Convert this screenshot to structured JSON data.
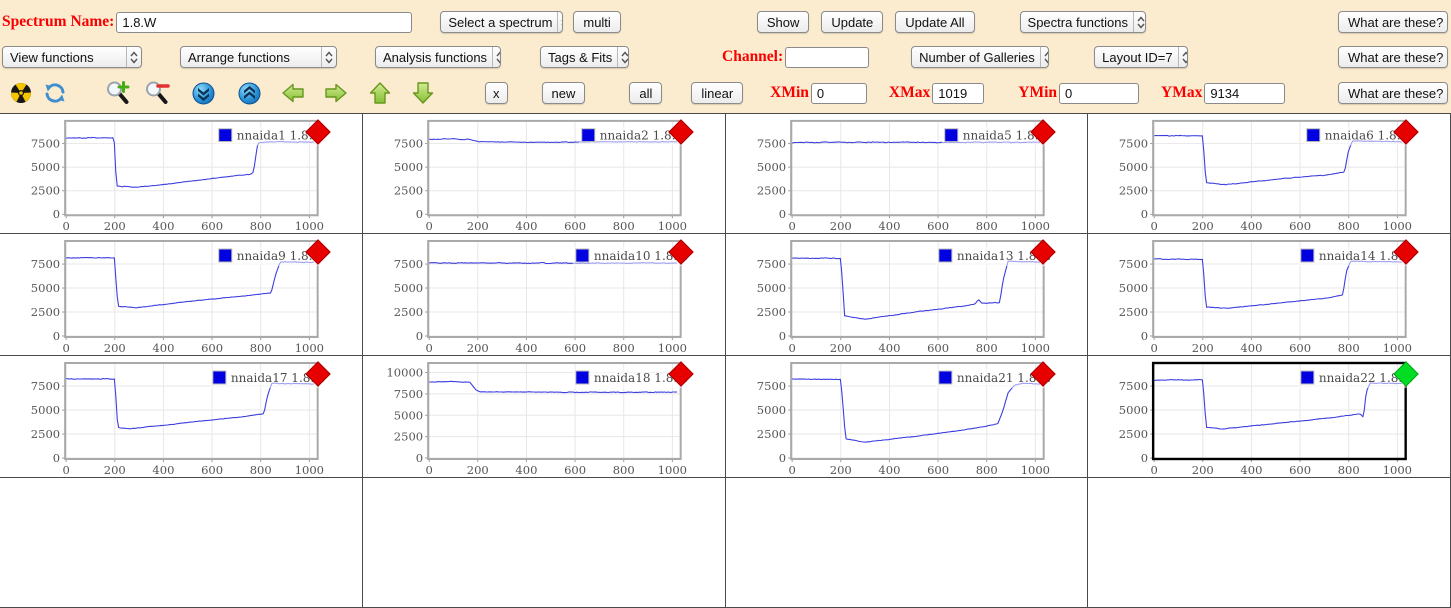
{
  "toolbar": {
    "row1": {
      "spectrum_name_label": "Spectrum Name:",
      "spectrum_name_value": "1.8.W",
      "select_spectrum": "Select a spectrum",
      "multi_label": "multi",
      "show_label": "Show",
      "update_label": "Update",
      "update_all_label": "Update All",
      "spectra_functions": "Spectra functions",
      "what_are_these": "What are these?"
    },
    "row2": {
      "view_functions": "View functions",
      "arrange_functions": "Arrange functions",
      "analysis_functions": "Analysis functions",
      "tags_fits": "Tags & Fits",
      "channel_label": "Channel:",
      "channel_value": "",
      "number_of_galleries": "Number of Galleries",
      "layout_id": "Layout ID=7",
      "what_are_these": "What are these?"
    },
    "row3": {
      "icons": [
        "radiation-icon",
        "refresh-icon",
        "zoom-in-icon",
        "zoom-out-icon",
        "double-down-icon",
        "double-up-icon",
        "arrow-left-icon",
        "arrow-right-icon",
        "arrow-up-icon",
        "arrow-down-icon"
      ],
      "x_label": "x",
      "new_label": "new",
      "all_label": "all",
      "linear_label": "linear",
      "xmin_label": "XMin",
      "xmin_value": "0",
      "xmax_label": "XMax",
      "xmax_value": "1019",
      "ymin_label": "YMin",
      "ymin_value": "0",
      "ymax_label": "YMax",
      "ymax_value": "9134",
      "what_are_these": "What are these?"
    }
  },
  "grid": {
    "columns": 4,
    "rows": 4,
    "plot_count": 12,
    "empty_count": 4
  },
  "colors": {
    "toolbar_bg": "#fbeccf",
    "label_red": "#fa0000",
    "line_blue": "#3f3fe0",
    "legend_swatch": "#0000e0",
    "marker": "#e60000",
    "marker_selected": "#00dd22",
    "plot_border": "#a9a9a9",
    "plot_border_selected": "#000000",
    "grid_line": "#e7e7e7",
    "tick_text": "#565656"
  },
  "chart_data": [
    {
      "type": "line",
      "name": "nnaida1",
      "legend": "nnaida1 1.8.W",
      "selected": false,
      "xlim": [
        0,
        1030
      ],
      "ylim": [
        0,
        9800
      ],
      "xticks": [
        0,
        200,
        400,
        600,
        800,
        1000
      ],
      "yticks": [
        0,
        2500,
        5000,
        7500
      ],
      "noise": 80,
      "points": [
        [
          0,
          8100
        ],
        [
          197,
          8100
        ],
        [
          207,
          3000
        ],
        [
          290,
          2870
        ],
        [
          430,
          3250
        ],
        [
          600,
          3800
        ],
        [
          758,
          4250
        ],
        [
          770,
          4450
        ],
        [
          788,
          7550
        ],
        [
          830,
          7700
        ],
        [
          1019,
          7640
        ]
      ]
    },
    {
      "type": "line",
      "name": "nnaida2",
      "legend": "nnaida2 1.8.W",
      "selected": false,
      "xlim": [
        0,
        1030
      ],
      "ylim": [
        0,
        9800
      ],
      "xticks": [
        0,
        200,
        400,
        600,
        800,
        1000
      ],
      "yticks": [
        0,
        2500,
        5000,
        7500
      ],
      "noise": 70,
      "points": [
        [
          0,
          7950
        ],
        [
          90,
          7990
        ],
        [
          168,
          7930
        ],
        [
          205,
          7700
        ],
        [
          430,
          7640
        ],
        [
          700,
          7680
        ],
        [
          1019,
          7680
        ]
      ]
    },
    {
      "type": "line",
      "name": "nnaida5",
      "legend": "nnaida5 1.8.W",
      "selected": false,
      "xlim": [
        0,
        1030
      ],
      "ylim": [
        0,
        9800
      ],
      "xticks": [
        0,
        200,
        400,
        600,
        800,
        1000
      ],
      "yticks": [
        0,
        2500,
        5000,
        7500
      ],
      "noise": 110,
      "points": [
        [
          0,
          7620
        ],
        [
          500,
          7650
        ],
        [
          1019,
          7640
        ]
      ]
    },
    {
      "type": "line",
      "name": "nnaida6",
      "legend": "nnaida6 1.8.W",
      "selected": false,
      "xlim": [
        0,
        1030
      ],
      "ylim": [
        0,
        9800
      ],
      "xticks": [
        0,
        200,
        400,
        600,
        800,
        1000
      ],
      "yticks": [
        0,
        2500,
        5000,
        7500
      ],
      "noise": 80,
      "points": [
        [
          0,
          8350
        ],
        [
          200,
          8320
        ],
        [
          213,
          3350
        ],
        [
          295,
          3150
        ],
        [
          520,
          3750
        ],
        [
          700,
          4150
        ],
        [
          783,
          4480
        ],
        [
          798,
          6600
        ],
        [
          815,
          7780
        ],
        [
          1019,
          7690
        ]
      ]
    },
    {
      "type": "line",
      "name": "nnaida9",
      "legend": "nnaida9 1.8.W",
      "selected": false,
      "xlim": [
        0,
        1030
      ],
      "ylim": [
        0,
        9800
      ],
      "xticks": [
        0,
        200,
        400,
        600,
        800,
        1000
      ],
      "yticks": [
        0,
        2500,
        5000,
        7500
      ],
      "noise": 80,
      "points": [
        [
          0,
          8150
        ],
        [
          198,
          8150
        ],
        [
          213,
          3100
        ],
        [
          290,
          2950
        ],
        [
          520,
          3650
        ],
        [
          720,
          4150
        ],
        [
          843,
          4480
        ],
        [
          860,
          6300
        ],
        [
          880,
          7720
        ],
        [
          1019,
          7680
        ]
      ]
    },
    {
      "type": "line",
      "name": "nnaida10",
      "legend": "nnaida10 1.8.W",
      "selected": false,
      "xlim": [
        0,
        1030
      ],
      "ylim": [
        0,
        9800
      ],
      "xticks": [
        0,
        200,
        400,
        600,
        800,
        1000
      ],
      "yticks": [
        0,
        2500,
        5000,
        7500
      ],
      "noise": 90,
      "points": [
        [
          0,
          7620
        ],
        [
          500,
          7610
        ],
        [
          1019,
          7600
        ]
      ]
    },
    {
      "type": "line",
      "name": "nnaida13",
      "legend": "nnaida13 1.8.W",
      "selected": false,
      "xlim": [
        0,
        1030
      ],
      "ylim": [
        0,
        9800
      ],
      "xticks": [
        0,
        200,
        400,
        600,
        800,
        1000
      ],
      "yticks": [
        0,
        2500,
        5000,
        7500
      ],
      "noise": 80,
      "points": [
        [
          0,
          8120
        ],
        [
          200,
          8100
        ],
        [
          216,
          2100
        ],
        [
          295,
          1750
        ],
        [
          520,
          2550
        ],
        [
          700,
          3100
        ],
        [
          752,
          3330
        ],
        [
          766,
          3820
        ],
        [
          780,
          3420
        ],
        [
          853,
          3480
        ],
        [
          868,
          5900
        ],
        [
          888,
          7790
        ],
        [
          1019,
          7710
        ]
      ]
    },
    {
      "type": "line",
      "name": "nnaida14",
      "legend": "nnaida14 1.8.W",
      "selected": false,
      "xlim": [
        0,
        1030
      ],
      "ylim": [
        0,
        9800
      ],
      "xticks": [
        0,
        200,
        400,
        600,
        800,
        1000
      ],
      "yticks": [
        0,
        2500,
        5000,
        7500
      ],
      "noise": 80,
      "points": [
        [
          0,
          8020
        ],
        [
          200,
          8000
        ],
        [
          213,
          3000
        ],
        [
          305,
          2900
        ],
        [
          520,
          3450
        ],
        [
          710,
          3950
        ],
        [
          776,
          4300
        ],
        [
          790,
          6700
        ],
        [
          808,
          7810
        ],
        [
          1019,
          7720
        ]
      ]
    },
    {
      "type": "line",
      "name": "nnaida17",
      "legend": "nnaida17 1.8.W",
      "selected": false,
      "xlim": [
        0,
        1030
      ],
      "ylim": [
        0,
        9800
      ],
      "xticks": [
        0,
        200,
        400,
        600,
        800,
        1000
      ],
      "yticks": [
        0,
        2500,
        5000,
        7500
      ],
      "noise": 80,
      "points": [
        [
          0,
          8230
        ],
        [
          200,
          8250
        ],
        [
          212,
          3200
        ],
        [
          262,
          3050
        ],
        [
          520,
          3750
        ],
        [
          710,
          4250
        ],
        [
          813,
          4620
        ],
        [
          827,
          6400
        ],
        [
          845,
          7790
        ],
        [
          1019,
          7700
        ]
      ]
    },
    {
      "type": "line",
      "name": "nnaida18",
      "legend": "nnaida18 1.8.W",
      "selected": false,
      "xlim": [
        0,
        1030
      ],
      "ylim": [
        0,
        11000
      ],
      "xticks": [
        0,
        200,
        400,
        600,
        800,
        1000
      ],
      "yticks": [
        0,
        2500,
        5000,
        7500,
        10000
      ],
      "noise": 90,
      "points": [
        [
          0,
          8900
        ],
        [
          95,
          8930
        ],
        [
          168,
          8850
        ],
        [
          193,
          7950
        ],
        [
          210,
          7730
        ],
        [
          600,
          7700
        ],
        [
          1019,
          7690
        ]
      ]
    },
    {
      "type": "line",
      "name": "nnaida21",
      "legend": "nnaida21 1.8.W",
      "selected": false,
      "xlim": [
        0,
        1030
      ],
      "ylim": [
        0,
        9800
      ],
      "xticks": [
        0,
        200,
        400,
        600,
        800,
        1000
      ],
      "yticks": [
        0,
        2500,
        5000,
        7500
      ],
      "noise": 80,
      "points": [
        [
          0,
          8220
        ],
        [
          200,
          8200
        ],
        [
          220,
          2000
        ],
        [
          300,
          1650
        ],
        [
          520,
          2300
        ],
        [
          710,
          2950
        ],
        [
          826,
          3450
        ],
        [
          846,
          3600
        ],
        [
          866,
          4900
        ],
        [
          888,
          6800
        ],
        [
          915,
          7620
        ],
        [
          950,
          7790
        ],
        [
          1019,
          7730
        ]
      ]
    },
    {
      "type": "line",
      "name": "nnaida22",
      "legend": "nnaida22 1.8.W",
      "selected": true,
      "xlim": [
        0,
        1030
      ],
      "ylim": [
        0,
        9800
      ],
      "xticks": [
        0,
        200,
        400,
        600,
        800,
        1000
      ],
      "yticks": [
        0,
        2500,
        5000,
        7500
      ],
      "noise": 80,
      "points": [
        [
          0,
          8130
        ],
        [
          200,
          8150
        ],
        [
          214,
          3200
        ],
        [
          282,
          3020
        ],
        [
          520,
          3650
        ],
        [
          710,
          4150
        ],
        [
          838,
          4560
        ],
        [
          850,
          4620
        ],
        [
          856,
          4180
        ],
        [
          862,
          4520
        ],
        [
          872,
          6900
        ],
        [
          888,
          7810
        ],
        [
          1019,
          7790
        ]
      ]
    }
  ]
}
